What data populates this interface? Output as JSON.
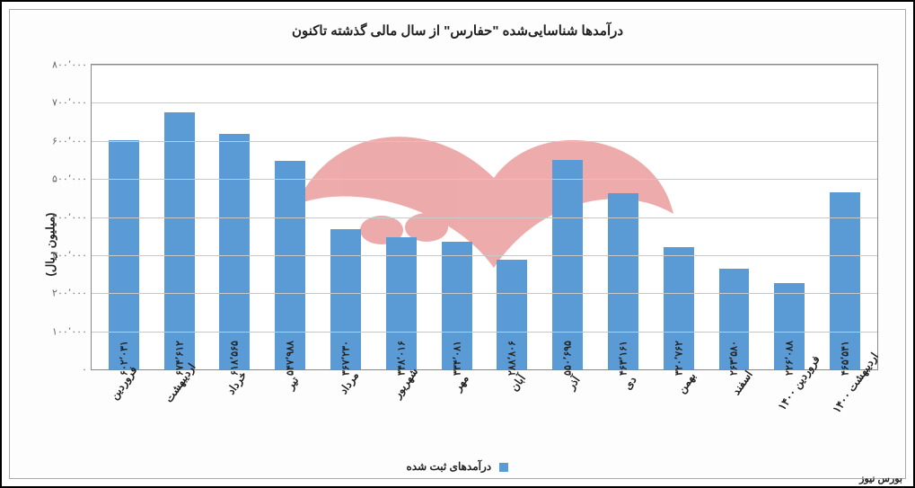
{
  "chart": {
    "type": "bar",
    "title": "درآمدها شناسایی‌شده \"حفارس\" از سال مالی گذشته تاکنون",
    "y_axis_label": "(میلیون ریال)",
    "series_label": "درآمدهای ثبت شده",
    "bar_color": "#5b9bd5",
    "grid_color": "#c9c9c9",
    "border_color": "#888888",
    "background_color": "#ffffff",
    "title_fontsize": 15,
    "label_fontsize": 12,
    "ylim_min": 0,
    "ylim_max": 800000,
    "ytick_step": 100000,
    "y_ticks": [
      "۰",
      "۱۰۰٬۰۰۰",
      "۲۰۰٬۰۰۰",
      "۳۰۰٬۰۰۰",
      "۴۰۰٬۰۰۰",
      "۵۰۰٬۰۰۰",
      "۶۰۰٬۰۰۰",
      "۷۰۰٬۰۰۰",
      "۸۰۰٬۰۰۰"
    ],
    "categories": [
      "فروردین",
      "اردیبهشت",
      "خرداد",
      "تیر",
      "مرداد",
      "شهریور",
      "مهر",
      "آبان",
      "آذر",
      "دی",
      "بهمن",
      "اسفند",
      "فروردین ۱۴۰۰",
      "اردیبهشت ۱۴۰۰"
    ],
    "values": [
      602031,
      674612,
      618565,
      547988,
      367230,
      348016,
      334081,
      288806,
      550695,
      463161,
      320762,
      263580,
      226088,
      465541
    ],
    "value_labels": [
      "۶۰۲٬۰۳۱",
      "۶۷۴٬۶۱۲",
      "۶۱۸٬۵۶۵",
      "۵۴۷٬۹۸۸",
      "۳۶۷٬۲۳۰",
      "۳۴۸٬۰۱۶",
      "۳۳۴٬۰۸۱",
      "۲۸۸٬۸۰۶",
      "۵۵۰٬۶۹۵",
      "۴۶۳٬۱۶۱",
      "۳۲۰٬۷۶۲",
      "۲۶۳٬۵۸۰",
      "۲۲۶٬۰۸۸",
      "۴۶۵٬۵۴۱"
    ],
    "bar_width_ratio": 0.55
  },
  "watermark": {
    "text": "بورس نیوز",
    "fill": "#d94a4a",
    "stroke": "#d94a4a",
    "opacity": 0.6,
    "font": "bold 80px Tahoma"
  },
  "footer": "بورس نیوز"
}
